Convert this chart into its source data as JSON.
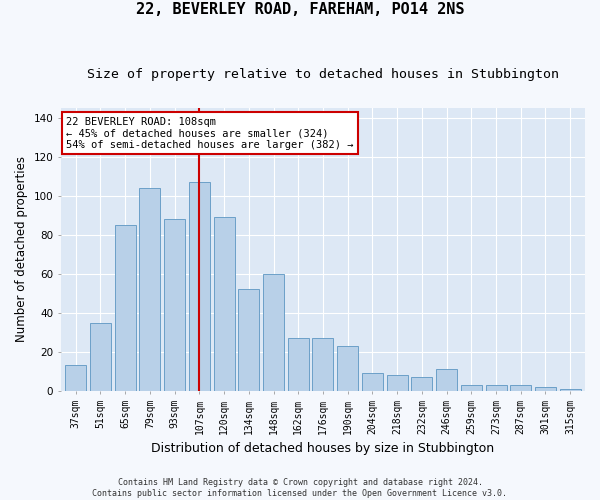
{
  "title": "22, BEVERLEY ROAD, FAREHAM, PO14 2NS",
  "subtitle": "Size of property relative to detached houses in Stubbington",
  "xlabel": "Distribution of detached houses by size in Stubbington",
  "ylabel": "Number of detached properties",
  "categories": [
    "37sqm",
    "51sqm",
    "65sqm",
    "79sqm",
    "93sqm",
    "107sqm",
    "120sqm",
    "134sqm",
    "148sqm",
    "162sqm",
    "176sqm",
    "190sqm",
    "204sqm",
    "218sqm",
    "232sqm",
    "246sqm",
    "259sqm",
    "273sqm",
    "287sqm",
    "301sqm",
    "315sqm"
  ],
  "bar_values": [
    13,
    35,
    85,
    104,
    88,
    107,
    89,
    52,
    60,
    27,
    27,
    23,
    9,
    8,
    7,
    11,
    3,
    3,
    3,
    2,
    1
  ],
  "bar_color": "#b8d0e8",
  "bar_edge_color": "#6ca0c8",
  "reference_line_idx": 5,
  "reference_line_color": "#cc0000",
  "annotation_line1": "22 BEVERLEY ROAD: 108sqm",
  "annotation_line2": "← 45% of detached houses are smaller (324)",
  "annotation_line3": "54% of semi-detached houses are larger (382) →",
  "annotation_box_color": "#ffffff",
  "annotation_box_edge": "#cc0000",
  "ylim": [
    0,
    145
  ],
  "yticks": [
    0,
    20,
    40,
    60,
    80,
    100,
    120,
    140
  ],
  "plot_bg_color": "#dde8f5",
  "fig_bg_color": "#f5f8fd",
  "grid_color": "#ffffff",
  "footer": "Contains HM Land Registry data © Crown copyright and database right 2024.\nContains public sector information licensed under the Open Government Licence v3.0.",
  "title_fontsize": 11,
  "subtitle_fontsize": 9.5,
  "tick_fontsize": 7,
  "ylabel_fontsize": 8.5,
  "xlabel_fontsize": 9,
  "footer_fontsize": 6,
  "annot_fontsize": 7.5
}
